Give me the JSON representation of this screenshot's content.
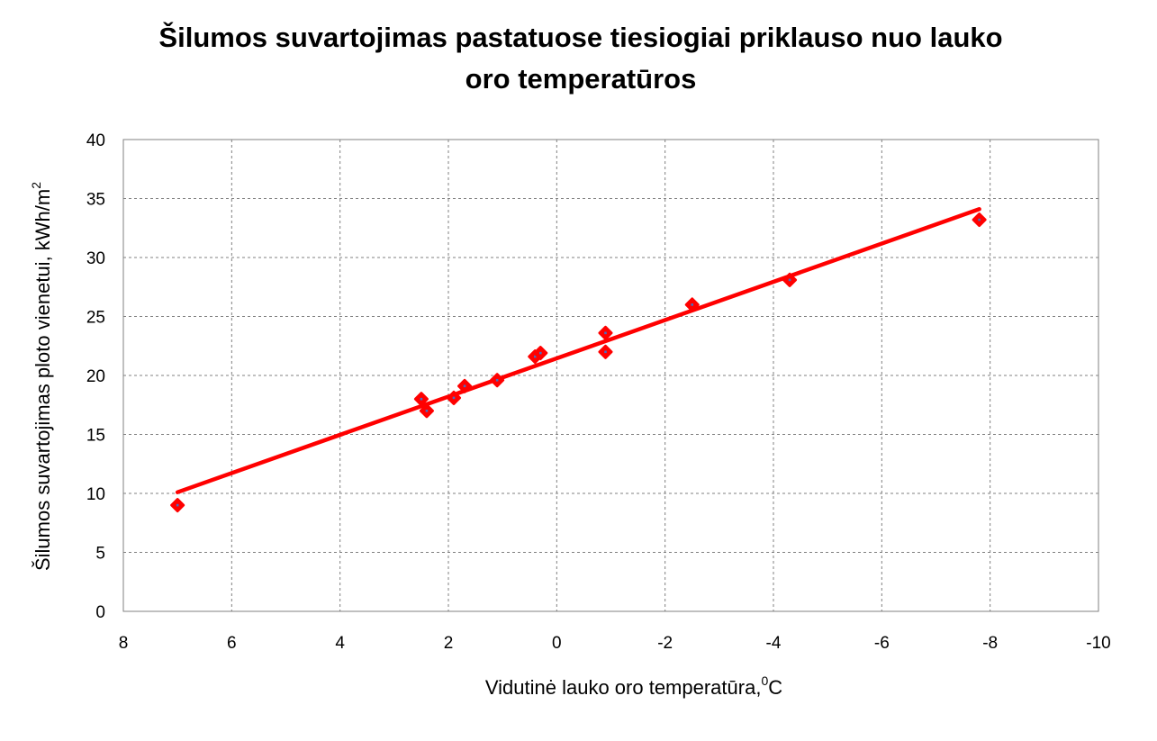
{
  "chart_data": {
    "type": "scatter",
    "title_lines": [
      "Šilumos suvartojimas pastatuose tiesiogiai priklauso nuo lauko",
      "oro temperatūros"
    ],
    "xlabel": {
      "text": "Vidutinė lauko oro temperatūra,",
      "sup": "0",
      "unit": "C"
    },
    "ylabel": {
      "text": "Šilumos suvartojimas ploto vienetui,  kWh/m",
      "sup": "2"
    },
    "xlim": [
      8,
      -10
    ],
    "ylim": [
      0,
      40
    ],
    "x_ticks": [
      8,
      6,
      4,
      2,
      0,
      -2,
      -4,
      -6,
      -8,
      -10
    ],
    "y_ticks": [
      0,
      5,
      10,
      15,
      20,
      25,
      30,
      35,
      40
    ],
    "grid": true,
    "marker_color": "#ff0000",
    "marker_center_color": "#4a6fc0",
    "trendline_color": "#ff0000",
    "points": [
      {
        "x": 7.0,
        "y": 9.0
      },
      {
        "x": 2.5,
        "y": 18.0
      },
      {
        "x": 2.4,
        "y": 17.0
      },
      {
        "x": 1.9,
        "y": 18.1
      },
      {
        "x": 1.7,
        "y": 19.1
      },
      {
        "x": 1.1,
        "y": 19.6
      },
      {
        "x": 0.4,
        "y": 21.6
      },
      {
        "x": 0.3,
        "y": 21.9
      },
      {
        "x": -0.9,
        "y": 22.0
      },
      {
        "x": -0.9,
        "y": 23.6
      },
      {
        "x": -2.5,
        "y": 26.0
      },
      {
        "x": -4.3,
        "y": 28.1
      },
      {
        "x": -7.8,
        "y": 33.2
      }
    ],
    "trendline": {
      "x": [
        7.0,
        -7.8
      ],
      "y": [
        10.1,
        34.1
      ]
    }
  }
}
